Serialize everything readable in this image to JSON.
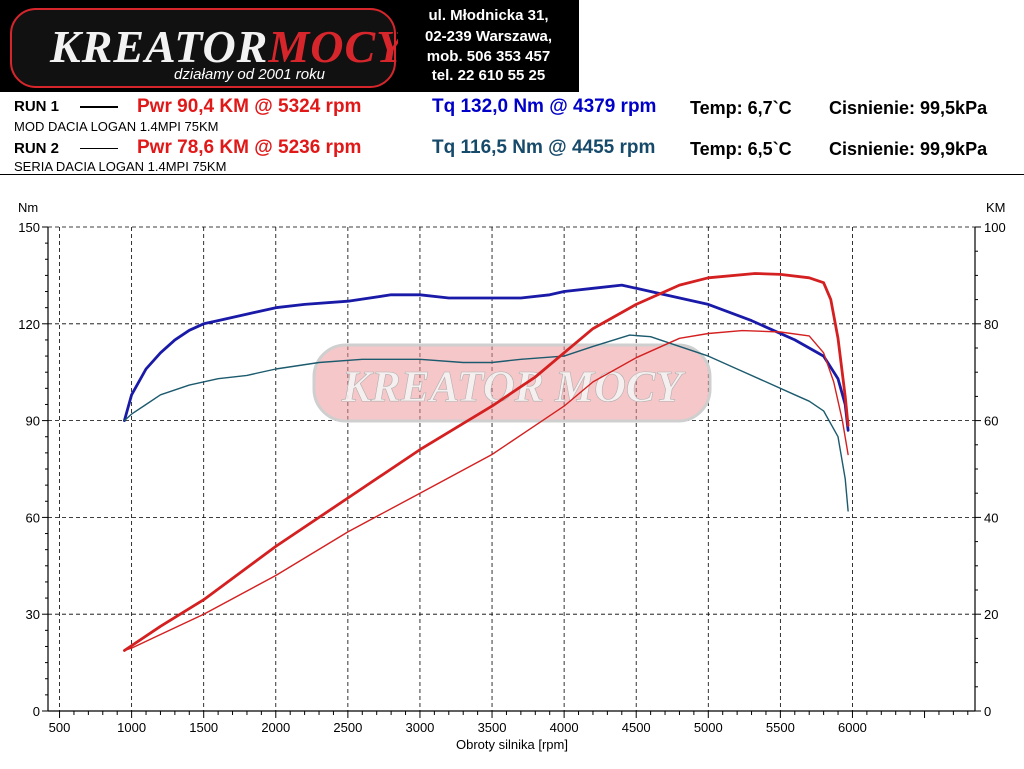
{
  "header": {
    "logo_text_1": "KREATOR",
    "logo_text_2": "MOCY",
    "slogan": "działamy od 2001 roku",
    "address_lines": [
      "ul. Młodnicka 31,",
      "02-239  Warszawa,",
      "mob.  506 353 457",
      "tel.  22 610 55 25"
    ]
  },
  "runs": [
    {
      "label": "RUN 1",
      "description": "MOD DACIA LOGAN 1.4MPI 75KM",
      "pwr_text": "Pwr  90,4 KM @ 5324 rpm",
      "tq_text": "Tq 132,0 Nm @ 4379 rpm",
      "temp_text": "Temp: 6,7`C",
      "pressure_text": "Cisnienie: 99,5kPa"
    },
    {
      "label": "RUN 2",
      "description": "SERIA DACIA LOGAN 1.4MPI 75KM",
      "pwr_text": "Pwr  78,6 KM @ 5236 rpm",
      "tq_text": "Tq 116,5 Nm @ 4455 rpm",
      "temp_text": "Temp: 6,5`C",
      "pressure_text": "Cisnienie: 99,9kPa"
    }
  ],
  "colors": {
    "power": "#d42020",
    "torque_run1": "#1a1aa8",
    "torque_run2": "#1c5a6e",
    "grid": "#000000"
  },
  "chart_data": {
    "type": "line",
    "xlabel": "Obroty silnika [rpm]",
    "ylabel_left": "Nm",
    "ylabel_right": "KM",
    "xlim": [
      420,
      6850
    ],
    "ylim_left": [
      0,
      150
    ],
    "ylim_right": [
      0,
      100
    ],
    "x_ticks": [
      500,
      1000,
      1500,
      2000,
      2500,
      3000,
      3500,
      4000,
      4500,
      5000,
      5500,
      6000
    ],
    "y_ticks_left": [
      0,
      30,
      60,
      90,
      120,
      150
    ],
    "y_ticks_right": [
      0,
      20,
      40,
      60,
      80,
      100
    ],
    "grid": true,
    "watermark": "KREATOR MOCY",
    "series": [
      {
        "name": "RUN 1",
        "quantity": "torque",
        "axis": "left",
        "x": [
          950,
          1000,
          1100,
          1200,
          1300,
          1400,
          1500,
          1600,
          1800,
          2000,
          2200,
          2500,
          2800,
          3000,
          3200,
          3500,
          3700,
          3900,
          4000,
          4200,
          4400,
          4500,
          4700,
          5000,
          5300,
          5600,
          5800,
          5900,
          5950,
          5970
        ],
        "y": [
          90,
          98,
          106,
          111,
          115,
          118,
          120,
          121,
          123,
          125,
          126,
          127,
          129,
          129,
          128,
          128,
          128,
          129,
          130,
          131,
          132,
          131,
          129,
          126,
          121,
          115,
          110,
          103,
          95,
          87
        ]
      },
      {
        "name": "RUN 2",
        "quantity": "torque",
        "axis": "left",
        "x": [
          950,
          1000,
          1100,
          1200,
          1400,
          1600,
          1800,
          2000,
          2300,
          2600,
          3000,
          3300,
          3500,
          3700,
          4000,
          4200,
          4455,
          4600,
          4800,
          5000,
          5200,
          5400,
          5600,
          5700,
          5800,
          5900,
          5950,
          5970
        ],
        "y": [
          90,
          92,
          95,
          98,
          101,
          103,
          104,
          106,
          108,
          109,
          109,
          108,
          108,
          109,
          110,
          113,
          116.5,
          116,
          113,
          110,
          106,
          102,
          98,
          96,
          93,
          85,
          72,
          62
        ]
      },
      {
        "name": "RUN 1",
        "quantity": "power",
        "axis": "right",
        "x": [
          950,
          1000,
          1200,
          1500,
          2000,
          2500,
          3000,
          3500,
          3800,
          4000,
          4200,
          4500,
          4800,
          5000,
          5324,
          5500,
          5700,
          5800,
          5850,
          5900,
          5950,
          5970
        ],
        "y": [
          12.5,
          13.5,
          17.5,
          23,
          34,
          44,
          54,
          63,
          69,
          74,
          79,
          84,
          88,
          89.5,
          90.4,
          90.2,
          89.5,
          88.5,
          85,
          77,
          65,
          59
        ]
      },
      {
        "name": "RUN 2",
        "quantity": "power",
        "axis": "right",
        "x": [
          950,
          1000,
          1500,
          2000,
          2500,
          3000,
          3500,
          3800,
          4000,
          4200,
          4500,
          4800,
          5000,
          5236,
          5500,
          5700,
          5800,
          5870,
          5930,
          5970
        ],
        "y": [
          12.5,
          13,
          20,
          28,
          37,
          45,
          53,
          59,
          63,
          68,
          73,
          77,
          78,
          78.6,
          78.3,
          77.5,
          74,
          68,
          60,
          53
        ]
      }
    ]
  }
}
